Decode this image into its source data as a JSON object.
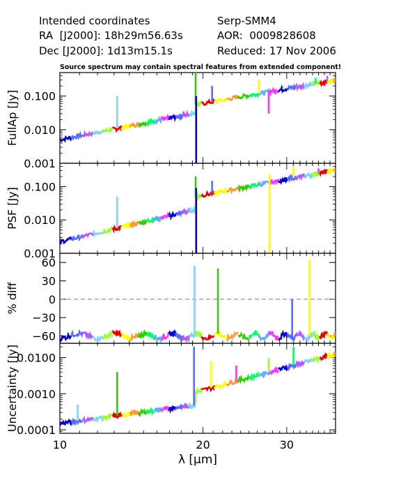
{
  "header": {
    "left": [
      "Intended coordinates",
      "RA  [J2000]: 18h29m56.63s",
      "Dec [J2000]: 1d13m15.1s"
    ],
    "right": [
      "Serp-SMM4",
      "AOR:  0009828608",
      "Reduced: 17 Nov 2006"
    ],
    "note": "Source spectrum may contain spectral features from extended component!"
  },
  "chart_data": {
    "type": "line",
    "x_axis": {
      "label": "λ [μm]",
      "scale": "log",
      "range": [
        10,
        38
      ],
      "ticks": [
        10,
        20,
        30
      ]
    },
    "segment_colors": [
      "#0000cc",
      "#5a6cff",
      "#b45cff",
      "#7fd3ff",
      "#99ff33",
      "#e60000",
      "#ffff00",
      "#ff9933",
      "#33cc00",
      "#00ff66",
      "#66aaff",
      "#ff33ff"
    ],
    "panels": [
      {
        "id": "fullap",
        "ylabel": "FullAp [Jy]",
        "scale": "log",
        "ylim": [
          0.001,
          0.5
        ],
        "ticks": [
          0.001,
          0.01,
          0.1
        ],
        "tick_labels": [
          "0.001",
          "0.010",
          "0.100"
        ],
        "spikes": [
          [
            13.2,
            0.1
          ],
          [
            19.3,
            0.5
          ],
          [
            20.9,
            0.2
          ],
          [
            26.2,
            0.3
          ],
          [
            27.5,
            0.03
          ],
          [
            29.5,
            0.2
          ],
          [
            34.5,
            0.35
          ],
          [
            36.5,
            0.4
          ]
        ],
        "dips": [
          [
            19.35,
            0.001
          ]
        ]
      },
      {
        "id": "psf",
        "ylabel": "PSF [Jy]",
        "scale": "log",
        "ylim": [
          0.001,
          0.5
        ],
        "ticks": [
          0.001,
          0.01,
          0.1
        ],
        "tick_labels": [
          "0.001",
          "0.010",
          "0.100"
        ],
        "spikes": [
          [
            13.2,
            0.05
          ],
          [
            19.3,
            0.2
          ],
          [
            20.9,
            0.15
          ],
          [
            31.0,
            0.4
          ],
          [
            35.0,
            0.35
          ]
        ],
        "dips": [
          [
            19.35,
            0.001
          ],
          [
            27.6,
            0.001
          ]
        ]
      },
      {
        "id": "pctdiff",
        "ylabel": "% diff",
        "scale": "linear",
        "ylim": [
          -72,
          75
        ],
        "ticks": [
          -60,
          -30,
          0,
          30,
          60
        ],
        "tick_labels": [
          "−60",
          "−30",
          "0",
          "30",
          "60"
        ],
        "zero_line": true,
        "spikes": [
          [
            19.2,
            55
          ],
          [
            21.5,
            50
          ],
          [
            30.8,
            0
          ],
          [
            33.5,
            65
          ]
        ],
        "dips": []
      },
      {
        "id": "uncertainty",
        "ylabel": "Uncertainty [Jy]",
        "scale": "log",
        "ylim": [
          8e-05,
          0.025
        ],
        "ticks": [
          0.0001,
          0.001,
          0.01
        ],
        "tick_labels": [
          "0.0001",
          "0.0010",
          "0.0100"
        ],
        "spikes": [
          [
            10.9,
            0.0005
          ],
          [
            13.2,
            0.004
          ],
          [
            19.15,
            0.02
          ],
          [
            20.8,
            0.008
          ],
          [
            23.5,
            0.006
          ],
          [
            27.5,
            0.01
          ],
          [
            31.0,
            0.02
          ]
        ],
        "dips": []
      }
    ]
  }
}
